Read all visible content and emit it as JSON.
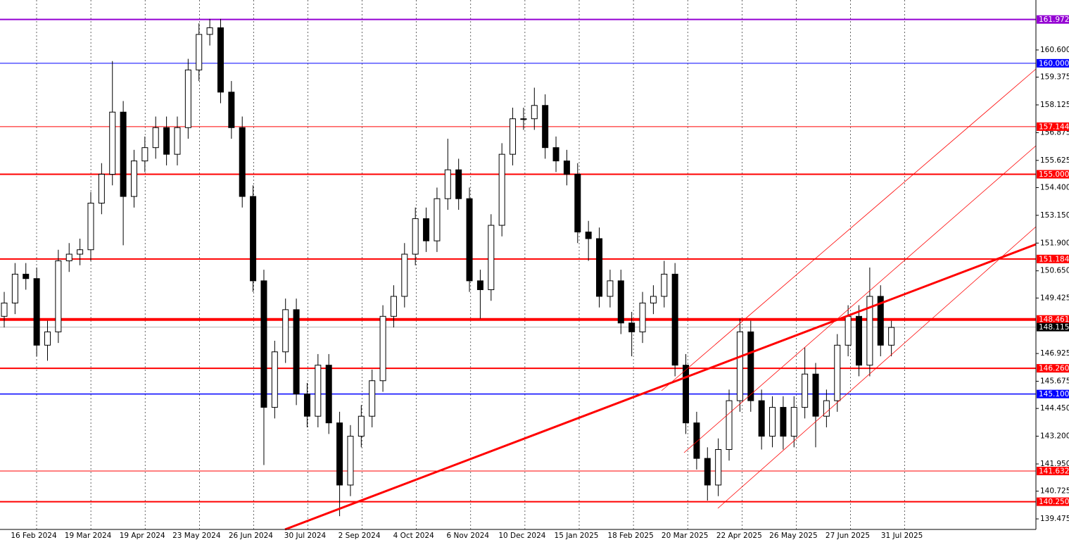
{
  "chart_data": {
    "type": "candlestick",
    "ylim": [
      139.0,
      162.85
    ],
    "yticks": [
      139.475,
      140.725,
      {
        "value": 141.95,
        "label": "141.950"
      },
      {
        "value": 143.2,
        "label": "143.200"
      },
      {
        "value": 144.45,
        "label": "144.450"
      },
      145.675,
      146.925,
      149.425,
      {
        "value": 150.65,
        "label": "150.650"
      },
      {
        "value": 151.9,
        "label": "151.900"
      },
      {
        "value": 153.15,
        "label": "153.150"
      },
      {
        "value": 154.4,
        "label": "154.400"
      },
      155.625,
      156.875,
      158.125,
      159.375,
      {
        "value": 160.6,
        "label": "160.600"
      }
    ],
    "x_tick_labels": [
      "16 Feb 2024",
      "19 Mar 2024",
      "19 Apr 2024",
      "23 May 2024",
      "26 Jun 2024",
      "30 Jul 2024",
      "2 Sep 2024",
      "4 Oct 2024",
      "6 Nov 2024",
      "10 Dec 2024",
      "15 Jan 2025",
      "18 Feb 2025",
      "20 Mar 2025",
      "22 Apr 2025",
      "26 May 2025",
      "27 Jun 2025",
      "31 Jul 2025"
    ],
    "x_grid": true,
    "ohlc": {
      "open": [
        148.6,
        149.2,
        150.5,
        150.3,
        147.3,
        147.9,
        151.1,
        151.4,
        151.6,
        153.7,
        155.0,
        157.8,
        154.0,
        155.6,
        156.2,
        157.1,
        155.9,
        157.1,
        159.7,
        161.3,
        161.6,
        158.7,
        157.1,
        154.0,
        150.2,
        144.5,
        147.0,
        148.9,
        145.1,
        144.1,
        146.4,
        143.8,
        141.0,
        143.2,
        144.1,
        145.7,
        148.6,
        149.5,
        151.4,
        153.0,
        152.0,
        153.9,
        155.2,
        153.9,
        150.2,
        149.8,
        152.7,
        155.9,
        157.5,
        157.5,
        158.1,
        156.2,
        155.6,
        155.0,
        152.4,
        152.1,
        149.5,
        150.2,
        148.3,
        147.9,
        149.2,
        149.5,
        150.5,
        146.4,
        143.8,
        142.2,
        141.0,
        142.6,
        144.8,
        147.9,
        144.8,
        143.2,
        144.5,
        143.2,
        144.5,
        146.0,
        144.1,
        144.8,
        147.3,
        148.6,
        146.4,
        149.5,
        147.3
      ],
      "high": [
        149.7,
        151.0,
        151.0,
        150.8,
        148.4,
        151.6,
        151.9,
        152.1,
        154.2,
        155.5,
        160.1,
        158.3,
        156.1,
        156.7,
        157.6,
        157.6,
        157.6,
        160.2,
        161.8,
        162.0,
        162.0,
        159.2,
        157.6,
        154.5,
        150.7,
        147.5,
        149.4,
        149.4,
        145.6,
        146.9,
        146.9,
        144.3,
        143.7,
        144.6,
        146.2,
        149.1,
        150.0,
        151.9,
        153.5,
        153.5,
        154.4,
        156.6,
        155.7,
        154.4,
        150.7,
        153.2,
        156.4,
        158.0,
        158.0,
        158.9,
        158.6,
        156.7,
        156.1,
        155.5,
        152.9,
        152.6,
        150.7,
        150.7,
        148.8,
        149.7,
        150.0,
        151.1,
        151.0,
        146.9,
        144.3,
        142.7,
        143.1,
        145.3,
        148.5,
        148.4,
        145.3,
        145.0,
        145.0,
        145.0,
        147.2,
        146.5,
        145.3,
        147.8,
        149.1,
        149.1,
        150.8,
        150.0,
        148.4
      ],
      "low": [
        148.1,
        148.7,
        149.8,
        146.8,
        146.6,
        147.4,
        150.6,
        150.9,
        151.1,
        153.2,
        154.5,
        151.8,
        153.5,
        155.1,
        155.7,
        155.4,
        155.4,
        156.6,
        159.2,
        160.8,
        158.2,
        156.6,
        153.5,
        149.7,
        141.9,
        144.0,
        146.5,
        144.6,
        143.6,
        143.6,
        143.3,
        139.6,
        140.5,
        142.7,
        143.6,
        145.2,
        148.1,
        149.0,
        150.9,
        151.5,
        151.5,
        153.4,
        153.4,
        149.7,
        148.5,
        149.3,
        152.2,
        155.4,
        157.0,
        157.0,
        155.7,
        155.1,
        154.5,
        151.9,
        151.1,
        149.0,
        149.0,
        147.8,
        146.8,
        147.4,
        148.7,
        149.0,
        145.9,
        143.3,
        141.7,
        140.3,
        140.5,
        142.1,
        144.3,
        144.3,
        142.6,
        142.7,
        142.6,
        142.7,
        144.0,
        142.7,
        143.6,
        144.3,
        146.8,
        145.9,
        145.9,
        146.8,
        146.8
      ],
      "close": [
        149.2,
        150.5,
        150.3,
        147.3,
        147.9,
        151.1,
        151.4,
        151.6,
        153.7,
        155.0,
        157.8,
        154.0,
        155.6,
        156.2,
        157.1,
        155.9,
        157.1,
        159.7,
        161.3,
        161.6,
        158.7,
        157.1,
        154.0,
        150.2,
        144.5,
        147.0,
        148.9,
        145.1,
        144.1,
        146.4,
        143.8,
        141.0,
        143.2,
        144.1,
        145.7,
        148.6,
        149.5,
        151.4,
        153.0,
        152.0,
        153.9,
        155.2,
        153.9,
        150.2,
        149.8,
        152.7,
        155.9,
        157.5,
        157.5,
        158.1,
        156.2,
        155.6,
        155.0,
        152.4,
        152.1,
        149.5,
        150.2,
        148.3,
        147.9,
        149.2,
        149.5,
        150.5,
        146.4,
        143.8,
        142.2,
        141.0,
        142.6,
        144.8,
        147.9,
        144.8,
        143.2,
        144.5,
        143.2,
        144.5,
        146.0,
        144.1,
        144.8,
        147.3,
        148.6,
        146.4,
        149.5,
        147.3,
        148.1
      ]
    },
    "levels": [
      {
        "value": 161.972,
        "color": "#9400d3",
        "width": 2
      },
      {
        "value": 160,
        "label": "160.000",
        "color": "#0000ff",
        "width": 1
      },
      {
        "value": 157.144,
        "color": "#ff0000",
        "width": 1
      },
      {
        "value": 155,
        "label": "155.000",
        "color": "#ff0000",
        "width": 2
      },
      {
        "value": 151.184,
        "color": "#ff0000",
        "width": 2
      },
      {
        "value": 148.461,
        "color": "#ff0000",
        "width": 4
      },
      {
        "value": 148.115,
        "color": "#b0b0b0",
        "width": 1,
        "label_color": "#000000"
      },
      {
        "value": 146.26,
        "label": "146.260",
        "color": "#ff0000",
        "width": 2
      },
      {
        "value": 145.1,
        "label": "145.100",
        "color": "#0000ff",
        "width": 1.5
      },
      {
        "value": 141.632,
        "color": "#ff0000",
        "width": 1
      },
      {
        "value": 140.25,
        "label": "140.250",
        "color": "#ff0000",
        "width": 2
      }
    ]
  }
}
